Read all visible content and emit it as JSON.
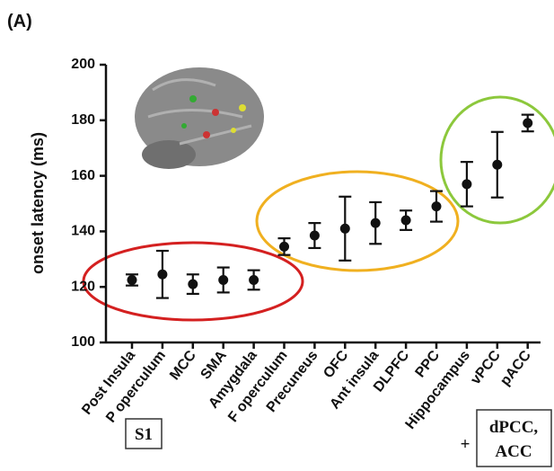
{
  "chart_data": {
    "type": "errorbar",
    "panel_label": "(A)",
    "y_label": "onset latency (ms)",
    "categories": [
      "Post Insula",
      "P operculum",
      "MCC",
      "SMA",
      "Amygdala",
      "F operculum",
      "Precuneus",
      "OFC",
      "Ant insula",
      "DLPFC",
      "PPC",
      "Hippocampus",
      "vPCC",
      "pACC"
    ],
    "values": [
      122.5,
      124.5,
      121,
      122.5,
      122.5,
      134.5,
      138.5,
      141,
      143,
      144,
      149,
      157,
      164,
      179
    ],
    "errors": [
      2,
      8.5,
      3.5,
      4.5,
      3.5,
      3,
      4.5,
      11.5,
      7.5,
      3.5,
      5.5,
      8,
      11.8,
      3
    ],
    "color": "#111111",
    "ylim": [
      100,
      200
    ],
    "yticks": [
      100,
      120,
      140,
      160,
      180,
      200
    ],
    "annotations": [
      "S1",
      "+",
      "dPCC,",
      "ACC"
    ]
  }
}
